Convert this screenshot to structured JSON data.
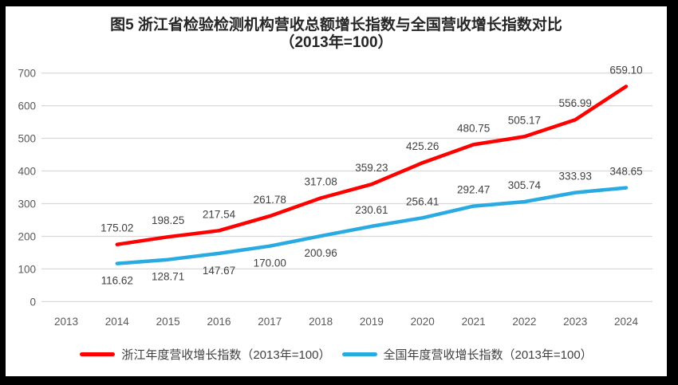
{
  "title": {
    "line1": "图5  浙江省检验检测机构营收总额增长指数与全国营收增长指数对比",
    "line2": "（2013年=100）"
  },
  "chart_data": {
    "type": "line",
    "title": "图5 浙江省检验检测机构营收总额增长指数与全国营收增长指数对比（2013年=100）",
    "categories": [
      "2013",
      "2014",
      "2015",
      "2016",
      "2017",
      "2018",
      "2019",
      "2020",
      "2021",
      "2022",
      "2023",
      "2024"
    ],
    "series": [
      {
        "name": "浙江年度营收增长指数（2013年=100）",
        "color": "#FE0000",
        "values": [
          null,
          175.02,
          198.25,
          217.54,
          261.78,
          317.08,
          359.23,
          425.26,
          480.75,
          505.17,
          556.99,
          659.1
        ],
        "labels": [
          "",
          "175.02",
          "198.25",
          "217.54",
          "261.78",
          "317.08",
          "359.23",
          "425.26",
          "480.75",
          "505.17",
          "556.99",
          "659.10"
        ],
        "label_side": [
          "",
          "above",
          "above",
          "above",
          "above",
          "above",
          "above",
          "above",
          "above",
          "above",
          "above",
          "above"
        ]
      },
      {
        "name": "全国年度营收增长指数（2013年=100）",
        "color": "#29ABE2",
        "values": [
          null,
          116.62,
          128.71,
          147.67,
          170.0,
          200.96,
          230.61,
          256.41,
          292.47,
          305.74,
          333.93,
          348.65
        ],
        "labels": [
          "",
          "116.62",
          "128.71",
          "147.67",
          "170.00",
          "200.96",
          "230.61",
          "256.41",
          "292.47",
          "305.74",
          "333.93",
          "348.65"
        ],
        "label_side": [
          "",
          "below",
          "below",
          "below",
          "below",
          "below",
          "above",
          "above",
          "above",
          "above",
          "above",
          "above"
        ]
      }
    ],
    "yticks": [
      0,
      100,
      200,
      300,
      400,
      500,
      600,
      700
    ],
    "ylim": [
      0,
      700
    ],
    "grid": true,
    "legend_position": "bottom",
    "styles": {
      "gridline_color": "#D9D9D9",
      "tick_label_color": "#595959",
      "data_label_color": "#404040",
      "frame_color": "#000000",
      "background_color": "#FFFFFF"
    }
  }
}
